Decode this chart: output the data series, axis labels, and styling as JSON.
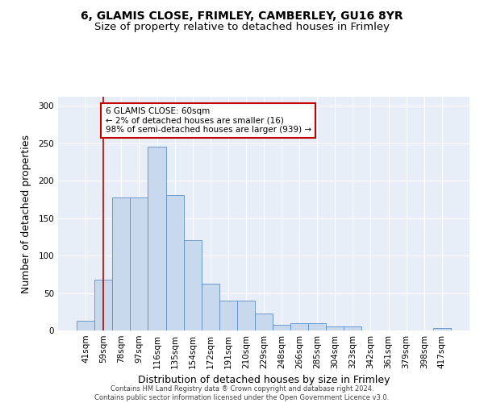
{
  "title1": "6, GLAMIS CLOSE, FRIMLEY, CAMBERLEY, GU16 8YR",
  "title2": "Size of property relative to detached houses in Frimley",
  "xlabel": "Distribution of detached houses by size in Frimley",
  "ylabel": "Number of detached properties",
  "categories": [
    "41sqm",
    "59sqm",
    "78sqm",
    "97sqm",
    "116sqm",
    "135sqm",
    "154sqm",
    "172sqm",
    "191sqm",
    "210sqm",
    "229sqm",
    "248sqm",
    "266sqm",
    "285sqm",
    "304sqm",
    "323sqm",
    "342sqm",
    "361sqm",
    "379sqm",
    "398sqm",
    "417sqm"
  ],
  "values": [
    13,
    68,
    178,
    178,
    245,
    181,
    121,
    62,
    40,
    40,
    23,
    8,
    10,
    10,
    5,
    5,
    0,
    0,
    0,
    0,
    3
  ],
  "bar_color": "#c8d9ee",
  "bar_edge_color": "#5b8fc7",
  "vline_x": 1.0,
  "vline_color": "#c00000",
  "annotation_text": "6 GLAMIS CLOSE: 60sqm\n← 2% of detached houses are smaller (16)\n98% of semi-detached houses are larger (939) →",
  "annotation_box_color": "#ffffff",
  "annotation_box_edge": "#c00000",
  "ylim": [
    0,
    312
  ],
  "yticks": [
    0,
    50,
    100,
    150,
    200,
    250,
    300
  ],
  "bg_color": "#e8eef8",
  "footer": "Contains HM Land Registry data ® Crown copyright and database right 2024.\nContains public sector information licensed under the Open Government Licence v3.0.",
  "title_fontsize": 10,
  "subtitle_fontsize": 9.5,
  "tick_fontsize": 7.5,
  "axis_label_fontsize": 9,
  "footer_fontsize": 6.0
}
